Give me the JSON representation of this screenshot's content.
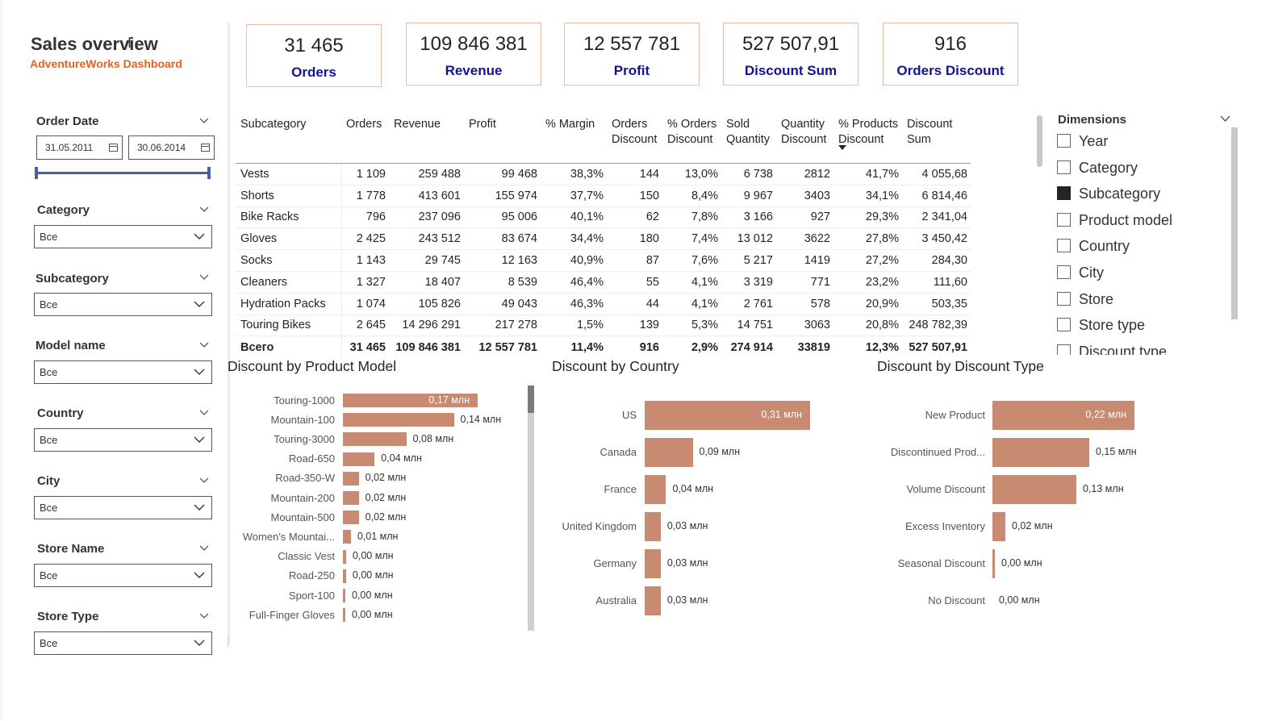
{
  "header": {
    "title": "Sales overview",
    "subtitle": "AdventureWorks Dashboard"
  },
  "kpis": [
    {
      "value": "31 465",
      "label": "Orders"
    },
    {
      "value": "109 846 381",
      "label": "Revenue"
    },
    {
      "value": "12 557 781",
      "label": "Profit"
    },
    {
      "value": "527 507,91",
      "label": "Discount Sum"
    },
    {
      "value": "916",
      "label": "Orders Discount"
    }
  ],
  "slicers": {
    "order_date": {
      "label": "Order Date",
      "from": "31.05.2011",
      "to": "30.06.2014"
    },
    "category": {
      "label": "Category",
      "value": "Все"
    },
    "subcategory": {
      "label": "Subcategory",
      "value": "Все"
    },
    "model_name": {
      "label": "Model name",
      "value": "Все"
    },
    "country": {
      "label": "Country",
      "value": "Все"
    },
    "city": {
      "label": "City",
      "value": "Все"
    },
    "store_name": {
      "label": "Store Name",
      "value": "Все"
    },
    "store_type": {
      "label": "Store Type",
      "value": "Все"
    }
  },
  "table": {
    "headers": [
      "Subcategory",
      "Orders",
      "Revenue",
      "Profit",
      "% Margin",
      "Orders Discount",
      "% Orders Discount",
      "Sold Quantity",
      "Quantity Discount",
      "% Products Discount",
      "Discount Sum"
    ],
    "header_lines": [
      [
        "Subcategory",
        ""
      ],
      [
        "Orders",
        ""
      ],
      [
        "Revenue",
        ""
      ],
      [
        "Profit",
        ""
      ],
      [
        "% Margin",
        ""
      ],
      [
        "Orders",
        "Discount"
      ],
      [
        "% Orders",
        "Discount"
      ],
      [
        "Sold",
        "Quantity"
      ],
      [
        "Quantity",
        "Discount"
      ],
      [
        "% Products",
        "Discount"
      ],
      [
        "Discount",
        "Sum"
      ]
    ],
    "rows": [
      [
        "Vests",
        "1 109",
        "259 488",
        "99 468",
        "38,3%",
        "144",
        "13,0%",
        "6 738",
        "2812",
        "41,7%",
        "4 055,68"
      ],
      [
        "Shorts",
        "1 778",
        "413 601",
        "155 974",
        "37,7%",
        "150",
        "8,4%",
        "9 967",
        "3403",
        "34,1%",
        "6 814,46"
      ],
      [
        "Bike Racks",
        "796",
        "237 096",
        "95 006",
        "40,1%",
        "62",
        "7,8%",
        "3 166",
        "927",
        "29,3%",
        "2 341,04"
      ],
      [
        "Gloves",
        "2 425",
        "243 512",
        "83 674",
        "34,4%",
        "180",
        "7,4%",
        "13 012",
        "3622",
        "27,8%",
        "3 450,42"
      ],
      [
        "Socks",
        "1 143",
        "29 745",
        "12 163",
        "40,9%",
        "87",
        "7,6%",
        "5 217",
        "1419",
        "27,2%",
        "284,30"
      ],
      [
        "Cleaners",
        "1 327",
        "18 407",
        "8 539",
        "46,4%",
        "55",
        "4,1%",
        "3 319",
        "771",
        "23,2%",
        "111,60"
      ],
      [
        "Hydration Packs",
        "1 074",
        "105 826",
        "49 043",
        "46,3%",
        "44",
        "4,1%",
        "2 761",
        "578",
        "20,9%",
        "503,35"
      ],
      [
        "Touring Bikes",
        "2 645",
        "14 296 291",
        "217 278",
        "1,5%",
        "139",
        "5,3%",
        "14 751",
        "3063",
        "20,8%",
        "248 782,39"
      ]
    ],
    "total": [
      "Всего",
      "31 465",
      "109 846 381",
      "12 557 781",
      "11,4%",
      "916",
      "2,9%",
      "274 914",
      "33819",
      "12,3%",
      "527 507,91"
    ]
  },
  "dimensions": {
    "title": "Dimensions",
    "items": [
      {
        "label": "Year",
        "checked": false
      },
      {
        "label": "Category",
        "checked": false
      },
      {
        "label": "Subcategory",
        "checked": true
      },
      {
        "label": "Product model",
        "checked": false
      },
      {
        "label": "Country",
        "checked": false
      },
      {
        "label": "City",
        "checked": false
      },
      {
        "label": "Store",
        "checked": false
      },
      {
        "label": "Store type",
        "checked": false
      },
      {
        "label": "Discount type",
        "checked": false
      }
    ]
  },
  "chart_data": [
    {
      "type": "bar",
      "orientation": "horizontal",
      "title": "Discount by Product Model",
      "categories": [
        "Touring-1000",
        "Mountain-100",
        "Touring-3000",
        "Road-650",
        "Road-350-W",
        "Mountain-200",
        "Mountain-500",
        "Women's Mountai...",
        "Classic Vest",
        "Road-250",
        "Sport-100",
        "Full-Finger Gloves"
      ],
      "values": [
        0.17,
        0.14,
        0.08,
        0.04,
        0.02,
        0.02,
        0.02,
        0.01,
        0.004,
        0.004,
        0.003,
        0.003
      ],
      "labels": [
        "0,17 млн",
        "0,14 млн",
        "0,08 млн",
        "0,04 млн",
        "0,02 млн",
        "0,02 млн",
        "0,02 млн",
        "0,01 млн",
        "0,00 млн",
        "0,00 млн",
        "0,00 млн",
        "0,00 млн"
      ],
      "unit": "млн",
      "color": "#c98a72"
    },
    {
      "type": "bar",
      "orientation": "horizontal",
      "title": "Discount by Country",
      "categories": [
        "US",
        "Canada",
        "France",
        "United Kingdom",
        "Germany",
        "Australia"
      ],
      "values": [
        0.31,
        0.09,
        0.04,
        0.03,
        0.03,
        0.03
      ],
      "labels": [
        "0,31 млн",
        "0,09 млн",
        "0,04 млн",
        "0,03 млн",
        "0,03 млн",
        "0,03 млн"
      ],
      "unit": "млн",
      "color": "#c98a72"
    },
    {
      "type": "bar",
      "orientation": "horizontal",
      "title": "Discount by Discount Type",
      "categories": [
        "New Product",
        "Discontinued Prod...",
        "Volume Discount",
        "Excess Inventory",
        "Seasonal Discount",
        "No Discount"
      ],
      "values": [
        0.22,
        0.15,
        0.13,
        0.02,
        0.003,
        0.0
      ],
      "labels": [
        "0,22 млн",
        "0,15 млн",
        "0,13 млн",
        "0,02 млн",
        "0,00 млн",
        "0,00 млн"
      ],
      "unit": "млн",
      "color": "#c98a72"
    }
  ]
}
